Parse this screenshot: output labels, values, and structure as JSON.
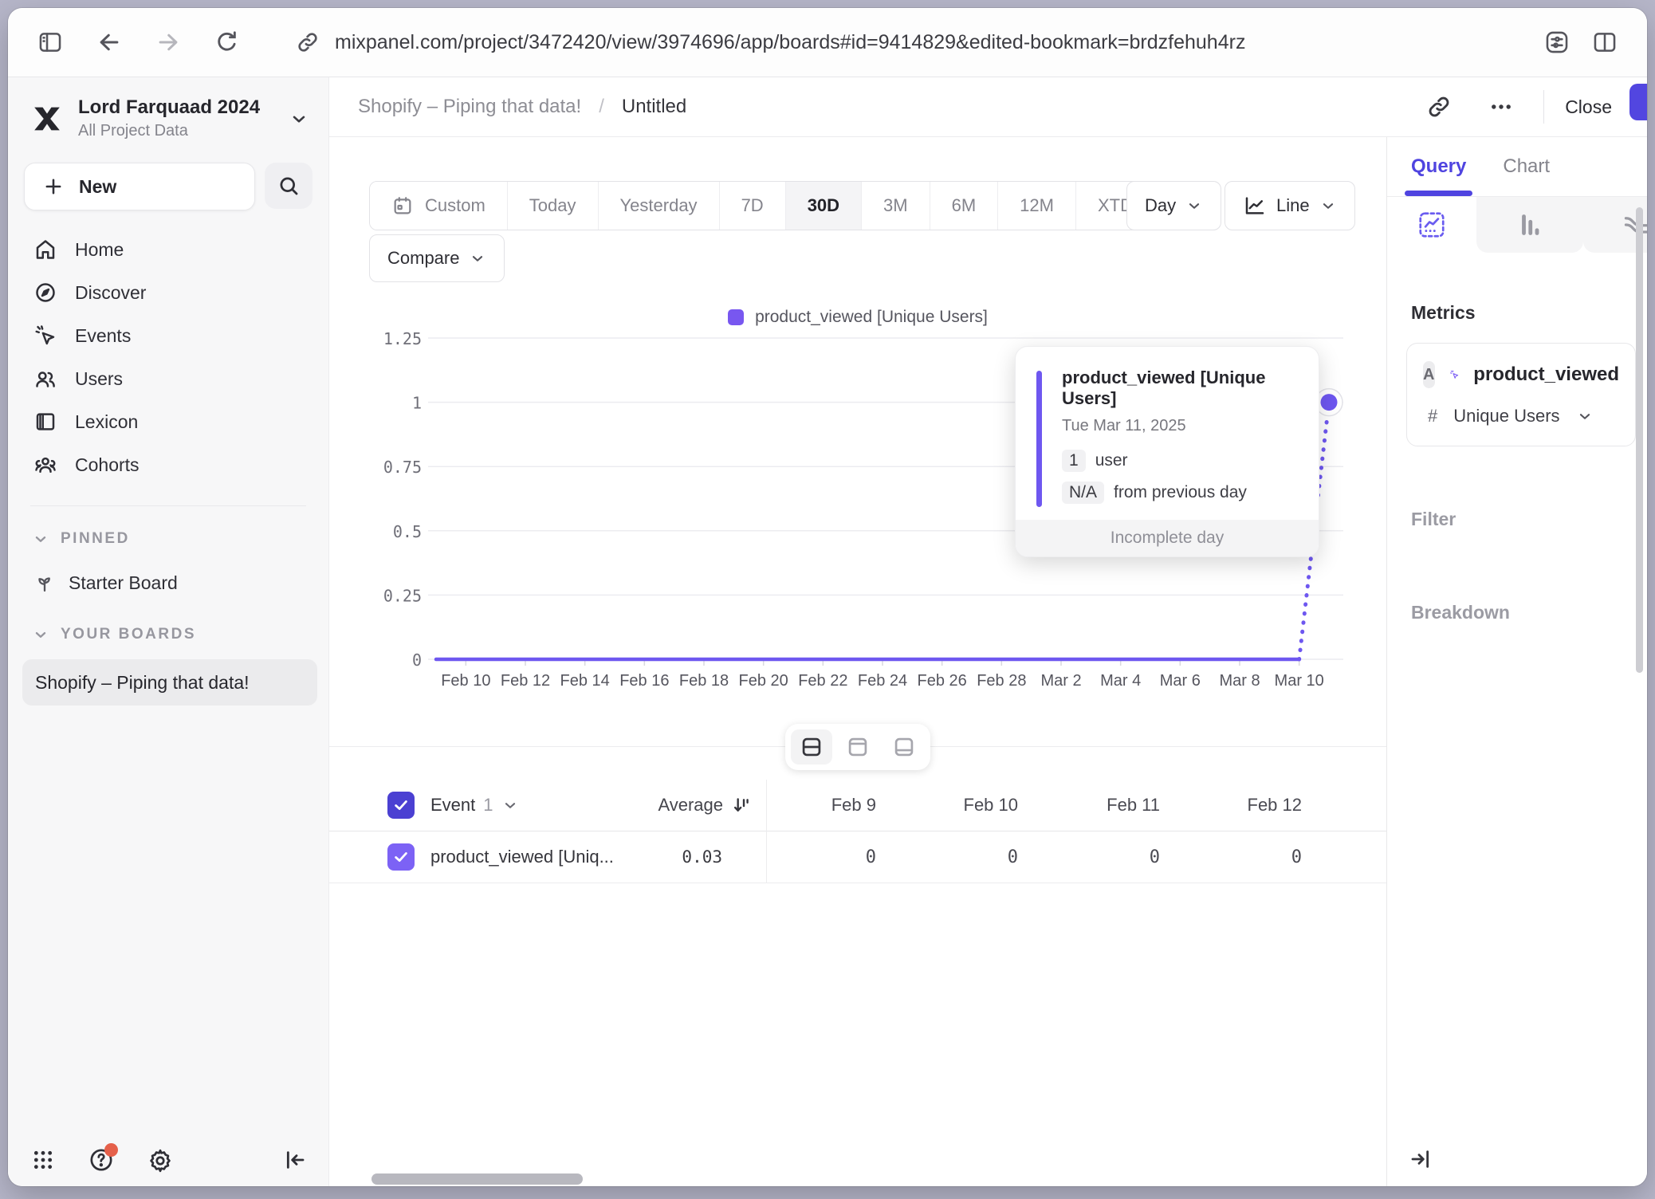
{
  "browser": {
    "url": "mixpanel.com/project/3472420/view/3974696/app/boards#id=9414829&edited-bookmark=brdzfehuh4rz"
  },
  "sidebar": {
    "workspace_name": "Lord Farquaad 2024",
    "workspace_subtitle": "All Project Data",
    "new_label": "New",
    "nav": [
      {
        "label": "Home"
      },
      {
        "label": "Discover"
      },
      {
        "label": "Events"
      },
      {
        "label": "Users"
      },
      {
        "label": "Lexicon"
      },
      {
        "label": "Cohorts"
      }
    ],
    "pinned_header": "PINNED",
    "pinned_board": "Starter Board",
    "your_boards_header": "YOUR BOARDS",
    "board": "Shopify – Piping that data!"
  },
  "header": {
    "board": "Shopify – Piping that data!",
    "separator": "/",
    "page": "Untitled",
    "close_label": "Close"
  },
  "controls": {
    "ranges": [
      "Custom",
      "Today",
      "Yesterday",
      "7D",
      "30D",
      "3M",
      "6M",
      "12M",
      "XTD"
    ],
    "selected_range": "30D",
    "granularity": "Day",
    "chart_type": "Line",
    "compare_label": "Compare"
  },
  "chart_data": {
    "type": "line",
    "title": "product_viewed [Unique Users]",
    "legend_position": "top-center",
    "grid": true,
    "ylim": [
      0,
      1.25
    ],
    "yticks": [
      0,
      0.25,
      0.5,
      0.75,
      1,
      1.25
    ],
    "x": [
      "Feb 9",
      "Feb 10",
      "Feb 11",
      "Feb 12",
      "Feb 13",
      "Feb 14",
      "Feb 15",
      "Feb 16",
      "Feb 17",
      "Feb 18",
      "Feb 19",
      "Feb 20",
      "Feb 21",
      "Feb 22",
      "Feb 23",
      "Feb 24",
      "Feb 25",
      "Feb 26",
      "Feb 27",
      "Feb 28",
      "Mar 1",
      "Mar 2",
      "Mar 3",
      "Mar 4",
      "Mar 5",
      "Mar 6",
      "Mar 7",
      "Mar 8",
      "Mar 9",
      "Mar 10",
      "Mar 11"
    ],
    "xtick_labels": [
      "Feb 10",
      "Feb 12",
      "Feb 14",
      "Feb 16",
      "Feb 18",
      "Feb 20",
      "Feb 22",
      "Feb 24",
      "Feb 26",
      "Feb 28",
      "Mar 2",
      "Mar 4",
      "Mar 6",
      "Mar 8",
      "Mar 10"
    ],
    "series": [
      {
        "name": "product_viewed [Unique Users]",
        "color": "#6e57f0",
        "values": [
          0,
          0,
          0,
          0,
          0,
          0,
          0,
          0,
          0,
          0,
          0,
          0,
          0,
          0,
          0,
          0,
          0,
          0,
          0,
          0,
          0,
          0,
          0,
          0,
          0,
          0,
          0,
          0,
          0,
          0,
          1
        ],
        "last_point_incomplete": true
      }
    ]
  },
  "tooltip": {
    "title": "product_viewed [Unique Users]",
    "date": "Tue Mar 11, 2025",
    "value": "1",
    "value_unit": "user",
    "delta": "N/A",
    "delta_label": "from previous day",
    "footer": "Incomplete day"
  },
  "table": {
    "event_label": "Event",
    "event_count": "1",
    "average_label": "Average",
    "date_columns": [
      "Feb 9",
      "Feb 10",
      "Feb 11",
      "Feb 12"
    ],
    "rows": [
      {
        "name": "product_viewed [Uniq...",
        "average": "0.03",
        "values": [
          "0",
          "0",
          "0",
          "0"
        ]
      }
    ]
  },
  "query_panel": {
    "tab_query": "Query",
    "tab_chart": "Chart",
    "active_tab": "Query",
    "metrics_label": "Metrics",
    "metric_letter": "A",
    "metric_event": "product_viewed",
    "metric_agg_symbol": "#",
    "metric_aggregation": "Unique Users",
    "filter_label": "Filter",
    "breakdown_label": "Breakdown"
  },
  "colors": {
    "accent_purple": "#4f44e0",
    "series_purple": "#6e57f0",
    "checkbox_header": "#4b40d2",
    "checkbox_row": "#7c62f5",
    "notification_red": "#e5604a"
  },
  "icons": [
    "sidebar-toggle-icon",
    "back-icon",
    "forward-icon",
    "reload-icon",
    "link-icon",
    "extensions-icon",
    "split-view-icon",
    "mixpanel-logo",
    "plus-icon",
    "search-icon",
    "home-icon",
    "discover-icon",
    "events-icon",
    "users-icon",
    "lexicon-icon",
    "cohorts-icon",
    "chevron-down-icon",
    "sprout-icon",
    "calendar-icon",
    "line-chart-icon",
    "more-icon",
    "insight-line-icon",
    "insight-bar-icon",
    "insight-flows-icon",
    "sort-icon",
    "check-icon",
    "grid-icon",
    "help-icon",
    "gear-icon",
    "collapse-left-icon",
    "expand-right-icon"
  ]
}
